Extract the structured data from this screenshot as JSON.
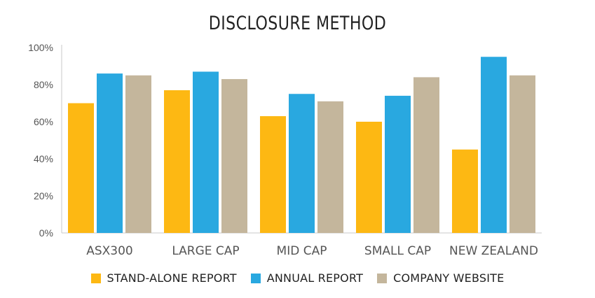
{
  "chart_data": {
    "type": "bar",
    "title": "DISCLOSURE METHOD",
    "categories": [
      "ASX300",
      "LARGE CAP",
      "MID CAP",
      "SMALL CAP",
      "NEW ZEALAND"
    ],
    "series": [
      {
        "name": "STAND-ALONE REPORT",
        "color": "#FDB813",
        "values": [
          70,
          77,
          63,
          60,
          45
        ]
      },
      {
        "name": "ANNUAL REPORT",
        "color": "#29A8E0",
        "values": [
          86,
          87,
          75,
          74,
          95
        ]
      },
      {
        "name": "COMPANY WEBSITE",
        "color": "#C4B69C",
        "values": [
          85,
          83,
          71,
          84,
          85
        ]
      }
    ],
    "yticks": [
      "0%",
      "20%",
      "40%",
      "60%",
      "80%",
      "100%"
    ],
    "ylim": [
      0,
      100
    ],
    "legend_position": "bottom",
    "grid": false
  }
}
